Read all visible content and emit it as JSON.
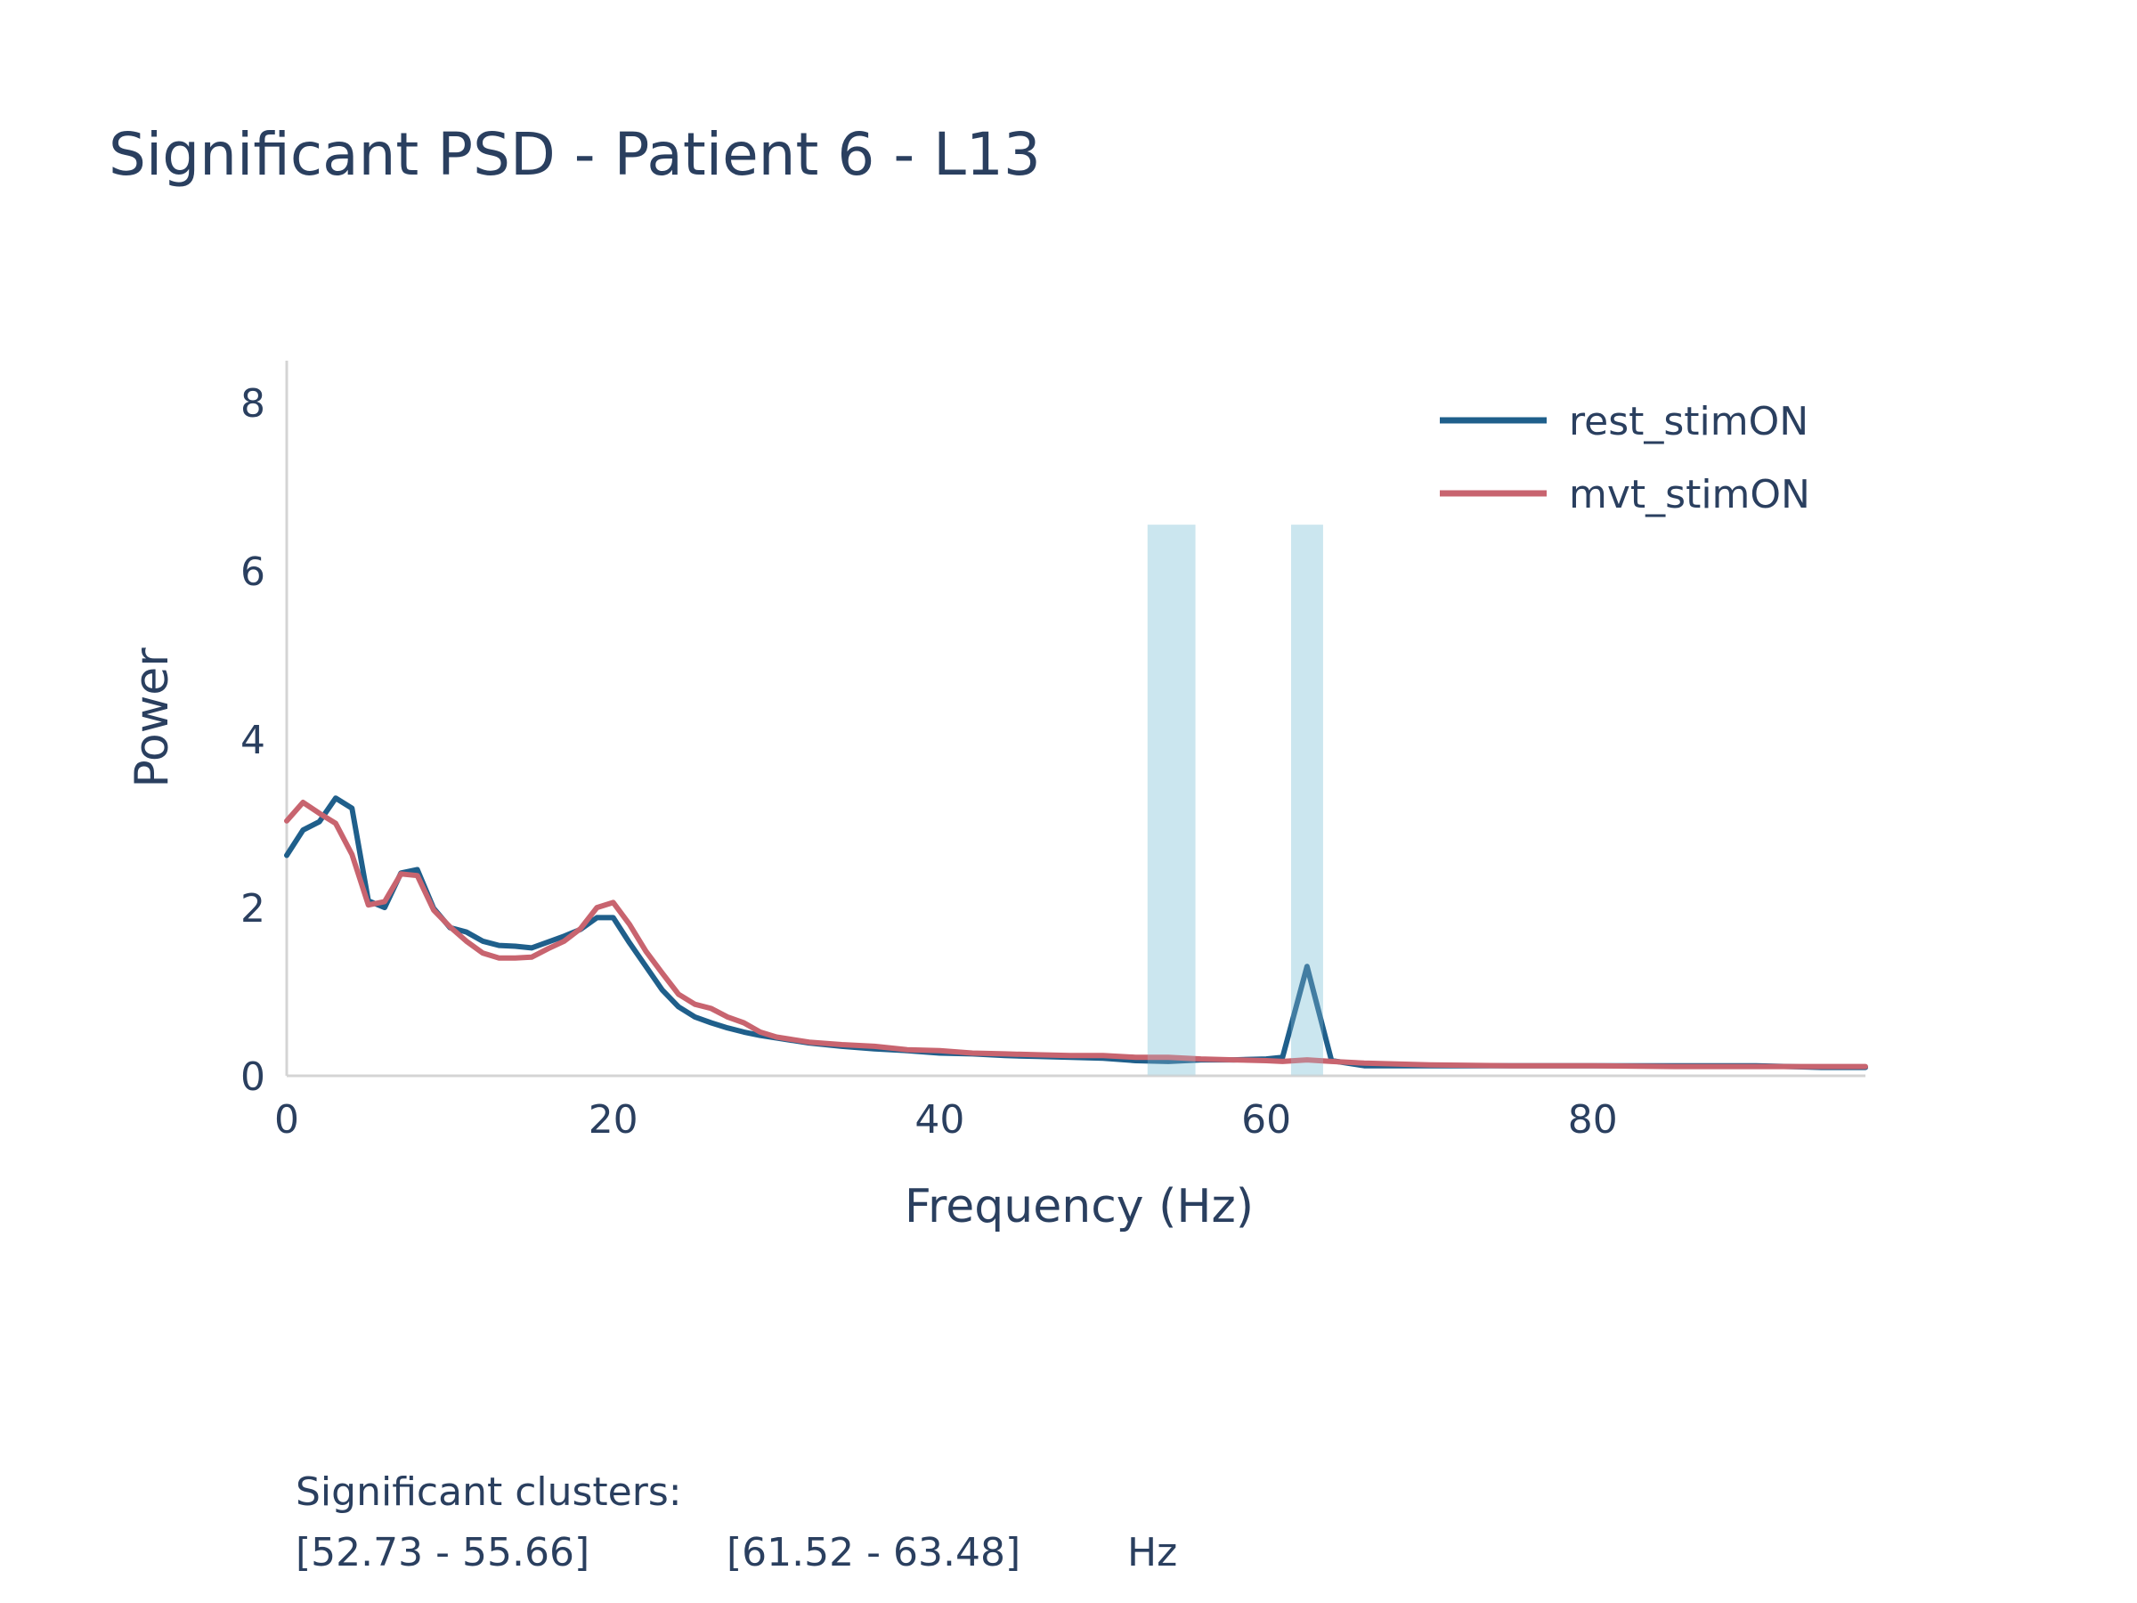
{
  "chart_data": {
    "type": "line",
    "title": "Significant PSD - Patient 6 - L13",
    "xlabel": "Frequency (Hz)",
    "ylabel": "Power",
    "xlim": [
      0,
      96.7
    ],
    "ylim": [
      0,
      8.5
    ],
    "xticks": [
      0,
      20,
      40,
      60,
      80
    ],
    "yticks": [
      0,
      2,
      4,
      6,
      8
    ],
    "grid": false,
    "legend_position": "top-right",
    "shaded_regions": [
      {
        "x0": 52.73,
        "x1": 55.66,
        "y_top": 6.55,
        "color": "#add8e6"
      },
      {
        "x0": 61.52,
        "x1": 63.48,
        "y_top": 6.55,
        "color": "#add8e6"
      }
    ],
    "series": [
      {
        "name": "rest_stimON",
        "color": "#1f5f8b",
        "x": [
          0,
          1,
          2,
          3,
          4,
          5,
          6,
          7,
          8,
          9,
          10,
          11,
          12,
          13,
          14,
          15,
          16,
          17,
          18,
          19,
          20,
          21,
          22,
          23,
          24,
          25,
          26,
          27,
          28,
          29,
          30,
          32,
          34,
          36,
          38,
          40,
          42,
          44,
          46,
          48,
          50,
          52,
          54,
          56,
          58,
          60,
          61,
          62.5,
          64,
          66,
          68,
          70,
          75,
          80,
          85,
          90,
          92,
          94,
          96.7
        ],
        "y": [
          2.62,
          2.92,
          3.02,
          3.3,
          3.18,
          2.08,
          2.0,
          2.41,
          2.45,
          1.99,
          1.76,
          1.71,
          1.6,
          1.55,
          1.54,
          1.52,
          1.59,
          1.66,
          1.74,
          1.88,
          1.88,
          1.58,
          1.3,
          1.02,
          0.82,
          0.7,
          0.63,
          0.57,
          0.52,
          0.48,
          0.45,
          0.39,
          0.35,
          0.32,
          0.3,
          0.27,
          0.26,
          0.24,
          0.23,
          0.22,
          0.21,
          0.18,
          0.17,
          0.19,
          0.19,
          0.2,
          0.22,
          1.3,
          0.18,
          0.12,
          0.12,
          0.12,
          0.12,
          0.12,
          0.12,
          0.12,
          0.11,
          0.1,
          0.1
        ]
      },
      {
        "name": "mvt_stimON",
        "color": "#c8646f",
        "x": [
          0,
          1,
          2,
          3,
          4,
          5,
          6,
          7,
          8,
          9,
          10,
          11,
          12,
          13,
          14,
          15,
          16,
          17,
          18,
          19,
          20,
          21,
          22,
          23,
          24,
          25,
          26,
          27,
          28,
          29,
          30,
          32,
          34,
          36,
          38,
          40,
          42,
          44,
          46,
          48,
          50,
          52,
          54,
          56,
          58,
          60,
          61,
          62.5,
          64,
          66,
          68,
          70,
          75,
          80,
          85,
          90,
          92,
          94,
          96.7
        ],
        "y": [
          3.03,
          3.25,
          3.12,
          3.0,
          2.63,
          2.03,
          2.07,
          2.4,
          2.38,
          1.97,
          1.77,
          1.6,
          1.46,
          1.4,
          1.4,
          1.41,
          1.51,
          1.6,
          1.75,
          2.0,
          2.06,
          1.8,
          1.48,
          1.22,
          0.97,
          0.85,
          0.8,
          0.7,
          0.63,
          0.52,
          0.46,
          0.4,
          0.37,
          0.35,
          0.31,
          0.3,
          0.27,
          0.26,
          0.25,
          0.24,
          0.24,
          0.22,
          0.22,
          0.2,
          0.19,
          0.18,
          0.17,
          0.19,
          0.17,
          0.15,
          0.14,
          0.13,
          0.12,
          0.12,
          0.11,
          0.11,
          0.11,
          0.11,
          0.11
        ]
      }
    ]
  },
  "footer": {
    "heading": "Significant clusters:",
    "clusters": [
      "[52.73 - 55.66]",
      "[61.52 - 63.48]"
    ],
    "unit": "Hz"
  }
}
